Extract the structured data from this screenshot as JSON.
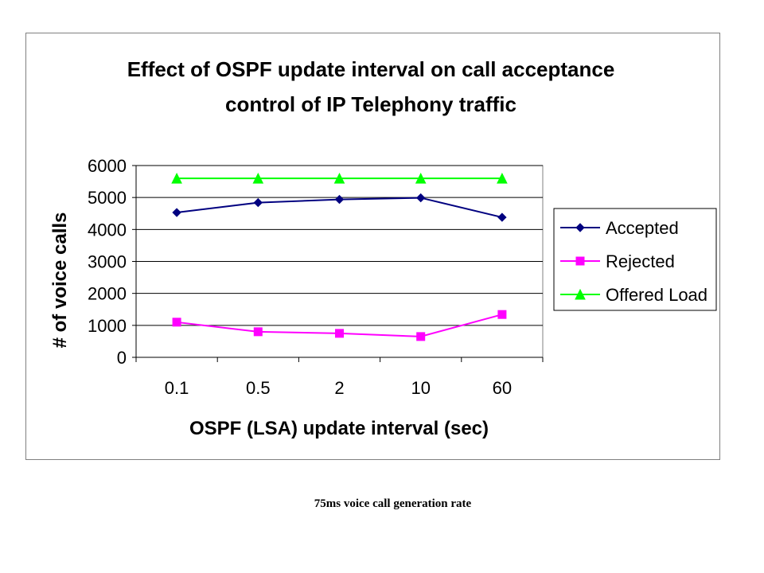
{
  "chart_data": {
    "type": "line",
    "title": [
      "Effect of OSPF update interval on call acceptance",
      "control of IP Telephony traffic"
    ],
    "xlabel": "OSPF (LSA) update interval (sec)",
    "ylabel": "# of voice calls",
    "categories": [
      "0.1",
      "0.5",
      "2",
      "10",
      "60"
    ],
    "ylim": [
      0,
      6000
    ],
    "yticks": [
      0,
      1000,
      2000,
      3000,
      4000,
      5000,
      6000
    ],
    "grid": true,
    "legend_position": "right",
    "series": [
      {
        "name": "Accepted",
        "values": [
          4530,
          4840,
          4940,
          4990,
          4380
        ],
        "color": "#000080",
        "marker": "diamond"
      },
      {
        "name": "Rejected",
        "values": [
          1100,
          800,
          750,
          650,
          1340
        ],
        "color": "#ff00ff",
        "marker": "square"
      },
      {
        "name": "Offered Load",
        "values": [
          5600,
          5600,
          5600,
          5600,
          5600
        ],
        "color": "#00ff00",
        "marker": "triangle"
      }
    ]
  },
  "caption": "75ms voice call generation rate"
}
